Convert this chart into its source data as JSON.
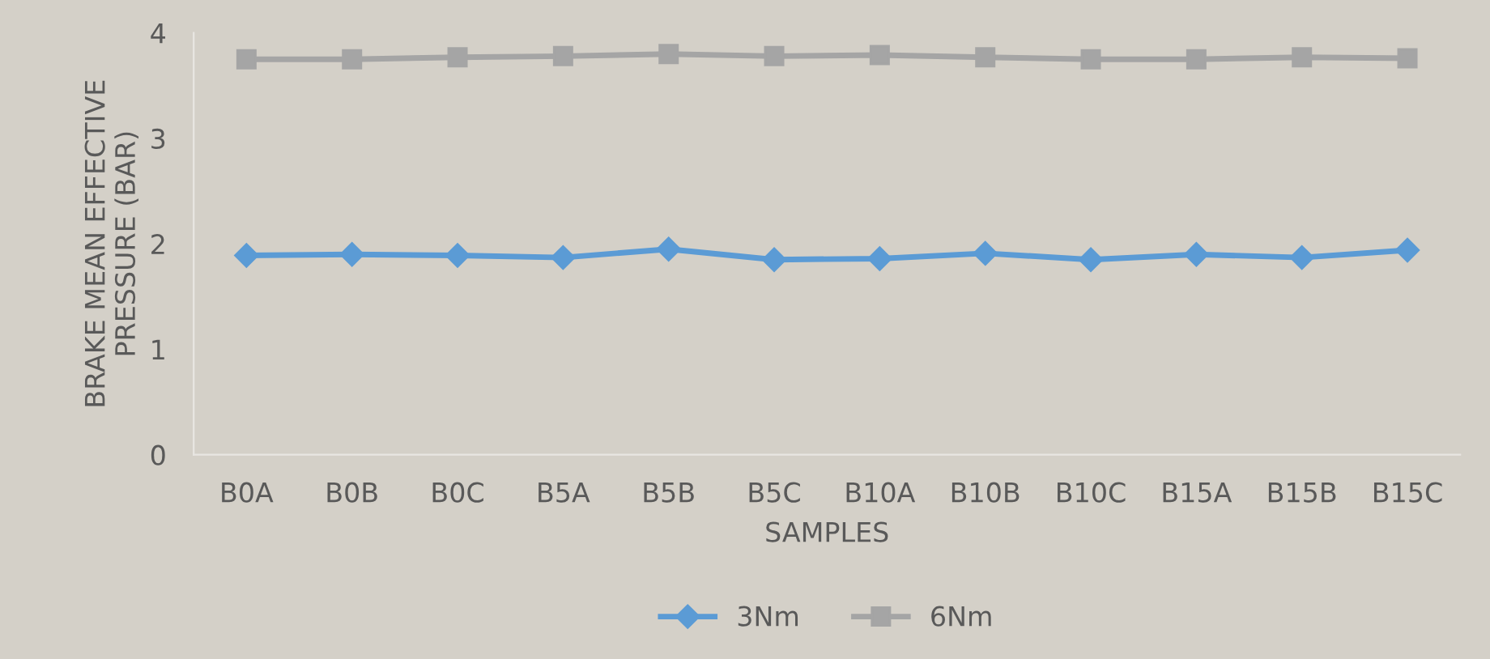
{
  "chart_data": {
    "type": "line",
    "xlabel": "SAMPLES",
    "ylabel": "BRAKE MEAN EFFECTIVE\nPRESSURE (BAR)",
    "categories": [
      "B0A",
      "B0B",
      "B0C",
      "B5A",
      "B5B",
      "B5C",
      "B10A",
      "B10B",
      "B10C",
      "B15A",
      "B15B",
      "B15C"
    ],
    "series": [
      {
        "name": "3Nm",
        "color": "#5b9bd5",
        "marker": "diamond",
        "values": [
          1.89,
          1.9,
          1.89,
          1.87,
          1.95,
          1.85,
          1.86,
          1.91,
          1.85,
          1.9,
          1.87,
          1.94
        ]
      },
      {
        "name": "6Nm",
        "color": "#a5a5a5",
        "marker": "square",
        "values": [
          3.75,
          3.75,
          3.77,
          3.78,
          3.8,
          3.78,
          3.79,
          3.77,
          3.75,
          3.75,
          3.77,
          3.76
        ]
      }
    ],
    "ylim": [
      0,
      4
    ],
    "yticks": [
      0,
      1,
      2,
      3,
      4
    ],
    "grid": false,
    "legend": "bottom"
  }
}
